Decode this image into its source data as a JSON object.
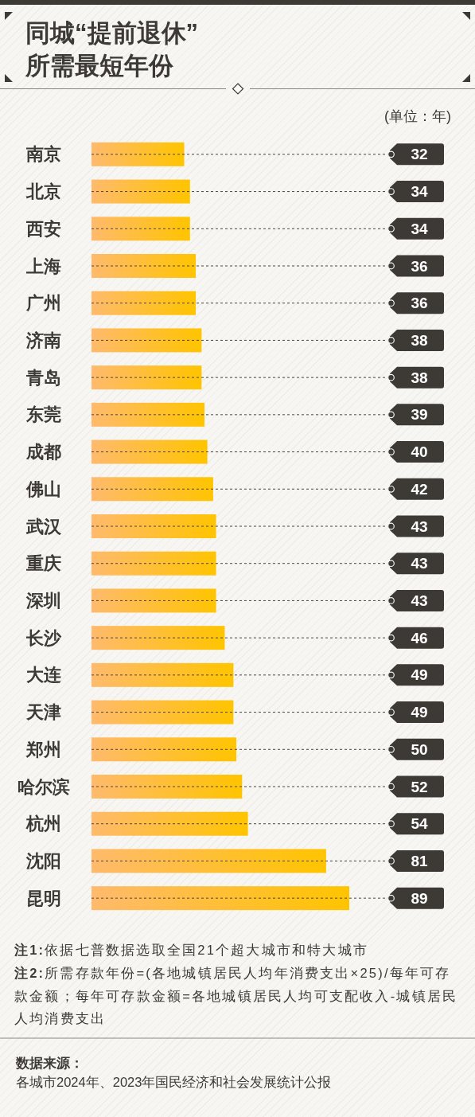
{
  "chart_data": {
    "type": "bar",
    "orientation": "horizontal",
    "title": "同城“提前退休”所需最短年份",
    "categories": [
      "南京",
      "北京",
      "西安",
      "上海",
      "广州",
      "济南",
      "青岛",
      "东莞",
      "成都",
      "佛山",
      "武汉",
      "重庆",
      "深圳",
      "长沙",
      "大连",
      "天津",
      "郑州",
      "哈尔滨",
      "杭州",
      "沈阳",
      "昆明"
    ],
    "values": [
      32,
      34,
      34,
      36,
      36,
      38,
      38,
      39,
      40,
      42,
      43,
      43,
      43,
      46,
      49,
      49,
      50,
      52,
      54,
      81,
      89
    ],
    "color": "#ffc400",
    "data_labels": true,
    "annotations": [
      "(单位：年)",
      "**注1:**依据七普数据选取全国21个超大城市和特大城市",
      "**注2:**所需存款年份=(各地城镇居民人均年消费支出×25)/每年可存款金额；每年可存款金额=各地城镇居民人均可支配收入-城镇居民人均消费支出",
      "数据来源：",
      "各城市2024年、2023年国民经济和社会发展统计公报"
    ]
  }
}
